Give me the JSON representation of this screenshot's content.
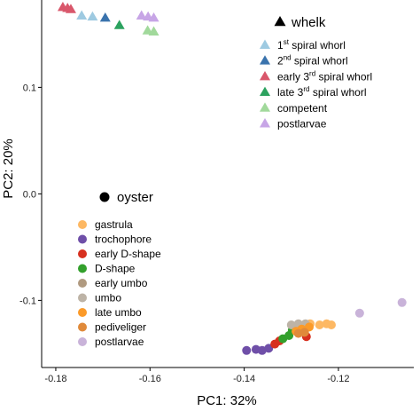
{
  "chart_data": {
    "type": "scatter",
    "xlabel": "PC1: 32%",
    "ylabel": "PC2: 20%",
    "xlim": [
      -0.183,
      -0.104
    ],
    "ylim": [
      -0.163,
      0.182
    ],
    "x_ticks": [
      {
        "value": -0.18,
        "label": "-0.18"
      },
      {
        "value": -0.16,
        "label": "-0.16"
      },
      {
        "value": -0.14,
        "label": "-0.14"
      },
      {
        "value": -0.12,
        "label": "-0.12"
      }
    ],
    "y_ticks": [
      {
        "value": 0.1,
        "label": "0.1"
      },
      {
        "value": 0.0,
        "label": "0.0"
      },
      {
        "value": -0.1,
        "label": "-0.1"
      }
    ],
    "grid": false,
    "groups": [
      {
        "title": "whelk",
        "marker": "triangle",
        "legend_position": "top-right",
        "series": [
          {
            "name": "1st spiral whorl",
            "name_base": "1",
            "name_sup": "st",
            "name_rest": " spiral whorl",
            "color": "#9ecae1",
            "points": [
              [
                -0.1745,
                0.167
              ],
              [
                -0.1722,
                0.166
              ]
            ]
          },
          {
            "name": "2nd spiral whorl",
            "name_base": "2",
            "name_sup": "nd",
            "name_rest": " spiral whorl",
            "color": "#3a73ad",
            "points": [
              [
                -0.1695,
                0.165
              ]
            ]
          },
          {
            "name": "early 3rd spiral whorl",
            "name_base": "early 3",
            "name_sup": "rd",
            "name_rest": " spiral whorl",
            "color": "#d9576b",
            "points": [
              [
                -0.1785,
                0.175
              ],
              [
                -0.1775,
                0.174
              ],
              [
                -0.1768,
                0.173
              ]
            ]
          },
          {
            "name": "late 3rd spiral whorl",
            "name_base": "late 3",
            "name_sup": "rd",
            "name_rest": " spiral whorl",
            "color": "#2ca25f",
            "points": [
              [
                -0.1665,
                0.158
              ]
            ]
          },
          {
            "name": "competent",
            "name_base": "competent",
            "name_sup": "",
            "name_rest": "",
            "color": "#a1d99b",
            "points": [
              [
                -0.1605,
                0.153
              ],
              [
                -0.1592,
                0.152
              ]
            ]
          },
          {
            "name": "postlarvae",
            "name_base": "postlarvae",
            "name_sup": "",
            "name_rest": "",
            "color": "#c7a5e6",
            "points": [
              [
                -0.1618,
                0.167
              ],
              [
                -0.1604,
                0.166
              ],
              [
                -0.1592,
                0.165
              ]
            ]
          }
        ]
      },
      {
        "title": "oyster",
        "marker": "circle",
        "legend_position": "bottom-left",
        "series": [
          {
            "name": "gastrula",
            "name_base": "gastrula",
            "name_sup": "",
            "name_rest": "",
            "color": "#fdb863",
            "points": [
              [
                -0.1215,
                -0.123
              ],
              [
                -0.1225,
                -0.122
              ],
              [
                -0.124,
                -0.123
              ],
              [
                -0.126,
                -0.122
              ]
            ]
          },
          {
            "name": "trochophore",
            "name_base": "trochophore",
            "name_sup": "",
            "name_rest": "",
            "color": "#6f4fa8",
            "points": [
              [
                -0.1395,
                -0.147
              ],
              [
                -0.1375,
                -0.146
              ],
              [
                -0.1362,
                -0.147
              ],
              [
                -0.1348,
                -0.145
              ]
            ]
          },
          {
            "name": "early D-shape",
            "name_base": "early D-shape",
            "name_sup": "",
            "name_rest": "",
            "color": "#d7301f",
            "points": [
              [
                -0.1335,
                -0.141
              ],
              [
                -0.1325,
                -0.138
              ],
              [
                -0.1268,
                -0.134
              ]
            ]
          },
          {
            "name": "D-shape",
            "name_base": "D-shape",
            "name_sup": "",
            "name_rest": "",
            "color": "#33a02c",
            "points": [
              [
                -0.1318,
                -0.136
              ],
              [
                -0.1305,
                -0.133
              ],
              [
                -0.1298,
                -0.128
              ]
            ]
          },
          {
            "name": "early umbo",
            "name_base": "early umbo",
            "name_sup": "",
            "name_rest": "",
            "color": "#b09a80",
            "points": [
              [
                -0.1288,
                -0.125
              ],
              [
                -0.1275,
                -0.126
              ]
            ]
          },
          {
            "name": "umbo",
            "name_base": "umbo",
            "name_sup": "",
            "name_rest": "",
            "color": "#bdb3a6",
            "points": [
              [
                -0.13,
                -0.123
              ],
              [
                -0.1285,
                -0.122
              ],
              [
                -0.127,
                -0.122
              ]
            ]
          },
          {
            "name": "late umbo",
            "name_base": "late umbo",
            "name_sup": "",
            "name_rest": "",
            "color": "#fb9a29",
            "points": [
              [
                -0.129,
                -0.129
              ],
              [
                -0.1278,
                -0.127
              ],
              [
                -0.1262,
                -0.125
              ]
            ]
          },
          {
            "name": "pediveliger",
            "name_base": "pediveliger",
            "name_sup": "",
            "name_rest": "",
            "color": "#e08a3a",
            "points": [
              [
                -0.1285,
                -0.131
              ],
              [
                -0.1272,
                -0.13
              ]
            ]
          },
          {
            "name": "postlarvae",
            "name_base": "postlarvae",
            "name_sup": "",
            "name_rest": "",
            "color": "#c9b3d9",
            "points": [
              [
                -0.1155,
                -0.112
              ],
              [
                -0.1065,
                -0.102
              ]
            ]
          }
        ]
      }
    ]
  }
}
